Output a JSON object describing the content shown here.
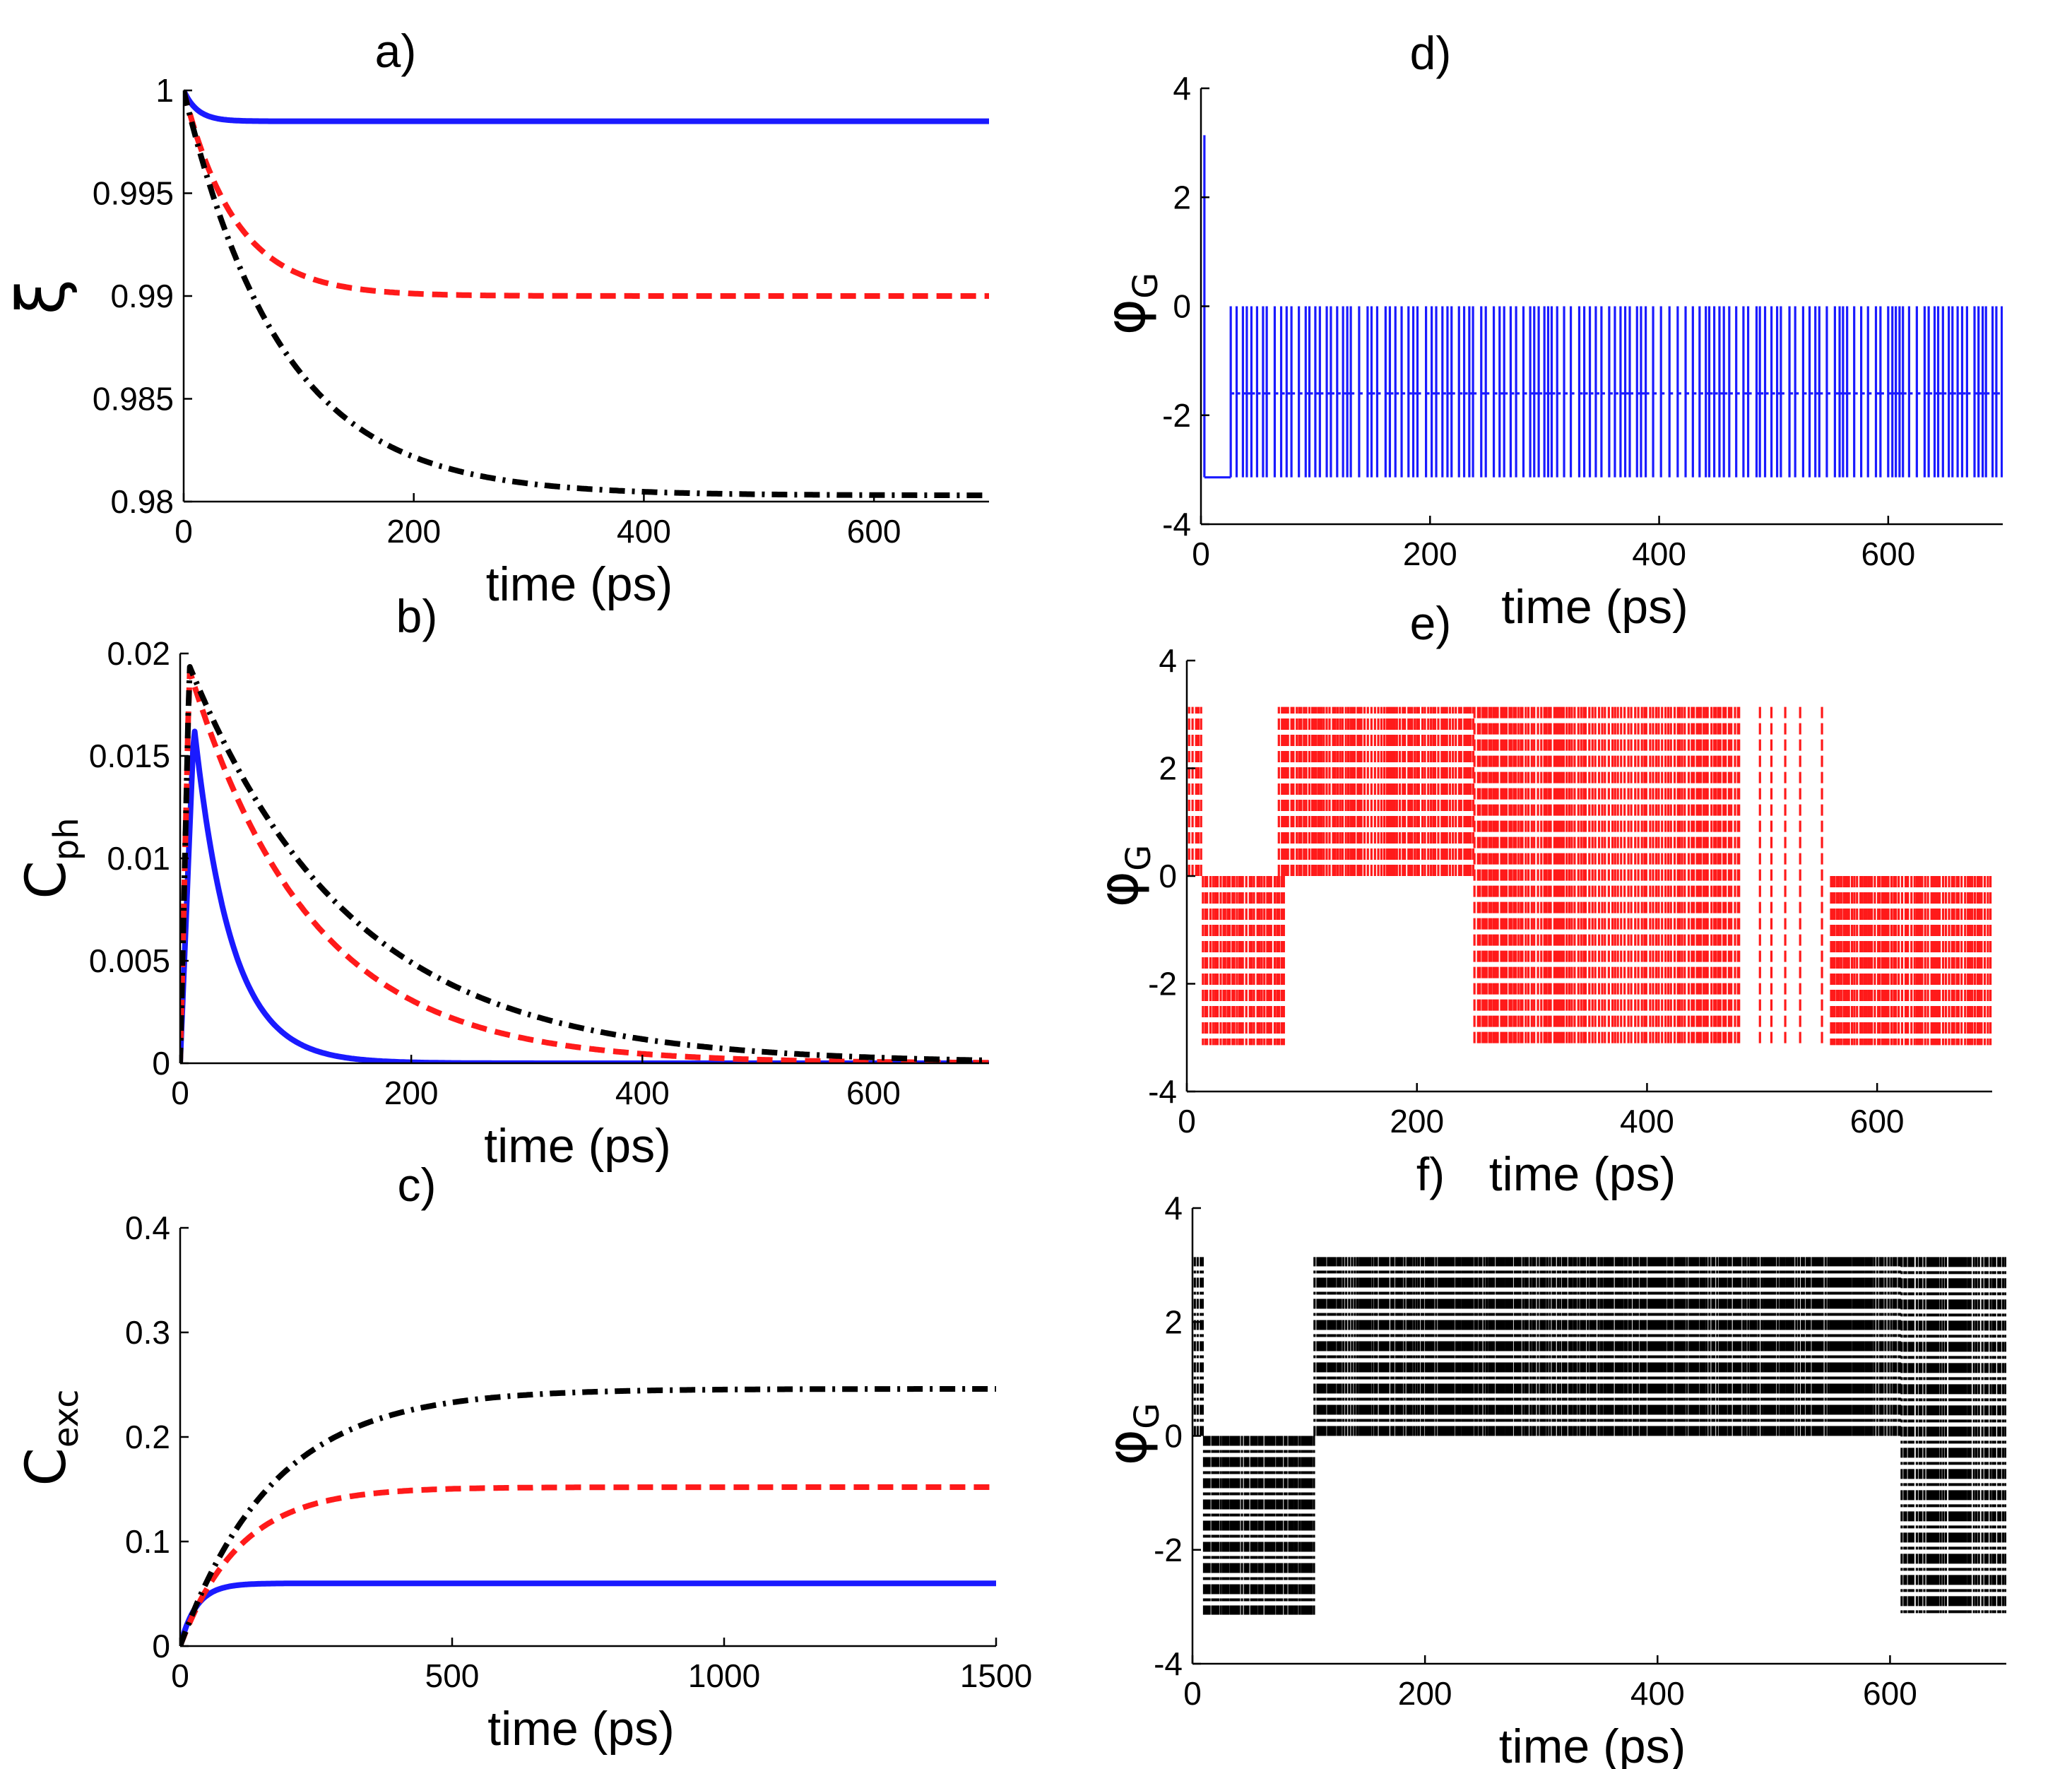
{
  "chart_data": [
    {
      "id": "a",
      "panel_label": "a)",
      "type": "line",
      "ylabel": "ξ",
      "xlabel": "time (ps)",
      "xlim": [
        0,
        700
      ],
      "ylim": [
        0.98,
        1.0
      ],
      "xticks": [
        0,
        200,
        400,
        600
      ],
      "xtick_labels": [
        "0",
        "200",
        "400",
        "600"
      ],
      "yticks": [
        0.98,
        0.985,
        0.99,
        0.995,
        1.0
      ],
      "ytick_labels": [
        "0.98",
        "0.985",
        "0.99",
        "0.995",
        "1"
      ],
      "series": [
        {
          "name": "solid-blue",
          "color": "#1a1aff",
          "style": "solid",
          "model": "exp_decay",
          "start": 1.0,
          "end": 0.9985,
          "tau": 12
        },
        {
          "name": "dashed-red",
          "color": "#ff1a1a",
          "style": "dashed",
          "model": "exp_decay",
          "start": 1.0,
          "end": 0.99,
          "tau": 45
        },
        {
          "name": "dashdot-black",
          "color": "#000000",
          "style": "dashdot",
          "model": "exp_decay",
          "start": 1.0,
          "end": 0.9803,
          "tau": 85
        }
      ]
    },
    {
      "id": "b",
      "panel_label": "b)",
      "type": "line",
      "ylabel": "C",
      "ylabel_sub": "ph",
      "xlabel": "time (ps)",
      "xlim": [
        0,
        700
      ],
      "ylim": [
        0,
        0.02
      ],
      "xticks": [
        0,
        200,
        400,
        600
      ],
      "xtick_labels": [
        "0",
        "200",
        "400",
        "600"
      ],
      "yticks": [
        0,
        0.005,
        0.01,
        0.015,
        0.02
      ],
      "ytick_labels": [
        "0",
        "0.005",
        "0.01",
        "0.015",
        "0.02"
      ],
      "series": [
        {
          "name": "solid-blue",
          "color": "#1a1aff",
          "style": "solid",
          "model": "rise_decay",
          "peak_t": 12,
          "peak": 0.0165,
          "tau": 32
        },
        {
          "name": "dashed-red",
          "color": "#ff1a1a",
          "style": "dashed",
          "model": "rise_decay",
          "peak_t": 8,
          "peak": 0.0192,
          "tau": 105
        },
        {
          "name": "dashdot-black",
          "color": "#000000",
          "style": "dashdot",
          "model": "rise_decay",
          "peak_t": 8,
          "peak": 0.0194,
          "tau": 140
        }
      ]
    },
    {
      "id": "c",
      "panel_label": "c)",
      "type": "line",
      "ylabel": "C",
      "ylabel_sub": "exc",
      "xlabel": "time (ps)",
      "xlim": [
        0,
        1500
      ],
      "ylim": [
        0,
        0.4
      ],
      "xticks": [
        0,
        500,
        1000,
        1500
      ],
      "xtick_labels": [
        "0",
        "500",
        "1000",
        "1500"
      ],
      "yticks": [
        0,
        0.1,
        0.2,
        0.3,
        0.4
      ],
      "ytick_labels": [
        "0",
        "0.1",
        "0.2",
        "0.3",
        "0.4"
      ],
      "series": [
        {
          "name": "solid-blue",
          "color": "#1a1aff",
          "style": "solid",
          "model": "saturate",
          "end": 0.06,
          "tau": 30
        },
        {
          "name": "dashed-red",
          "color": "#ff1a1a",
          "style": "dashed",
          "model": "saturate",
          "end": 0.152,
          "tau": 110
        },
        {
          "name": "dashdot-black",
          "color": "#000000",
          "style": "dashdot",
          "model": "saturate",
          "end": 0.246,
          "tau": 170
        }
      ]
    },
    {
      "id": "d",
      "panel_label": "d)",
      "type": "line",
      "ylabel": "φ",
      "ylabel_sub": "G",
      "xlabel": "time (ps)",
      "xlim": [
        0,
        700
      ],
      "ylim": [
        -4,
        4
      ],
      "xticks": [
        0,
        200,
        400,
        600
      ],
      "xtick_labels": [
        "0",
        "200",
        "400",
        "600"
      ],
      "yticks": [
        -4,
        -2,
        0,
        2,
        4
      ],
      "ytick_labels": [
        "-4",
        "-2",
        "0",
        "2",
        "4"
      ],
      "series": [
        {
          "name": "phase-blue",
          "color": "#1a1aff",
          "style": "solid",
          "model": "phase_jumps",
          "initial_spike": {
            "t": 3,
            "value": 3.14
          },
          "flat": {
            "from": 3,
            "to": 26,
            "value": -3.14
          },
          "segments": [
            {
              "from": 26,
              "to": 700,
              "levels": [
                0,
                -1.6,
                -3.14
              ],
              "step": 5.2
            }
          ]
        }
      ]
    },
    {
      "id": "e",
      "panel_label": "e)",
      "type": "line",
      "ylabel": "φ",
      "ylabel_sub": "G",
      "xlabel": "time (ps)",
      "xlim": [
        0,
        700
      ],
      "ylim": [
        -4,
        4
      ],
      "xticks": [
        0,
        200,
        400,
        600
      ],
      "xtick_labels": [
        "0",
        "200",
        "400",
        "600"
      ],
      "yticks": [
        -4,
        -2,
        0,
        2,
        4
      ],
      "ytick_labels": [
        "-4",
        "-2",
        "0",
        "2",
        "4"
      ],
      "series": [
        {
          "name": "phase-red",
          "color": "#ff1a1a",
          "style": "dashed",
          "model": "phase_jumps",
          "segments": [
            {
              "from": 2,
              "to": 14,
              "levels": [
                0,
                3.14
              ],
              "step": 3
            },
            {
              "from": 14,
              "to": 85,
              "levels": [
                0,
                -3.14
              ],
              "step": 2.2
            },
            {
              "from": 80,
              "to": 250,
              "levels": [
                0,
                3.14
              ],
              "step": 2.2
            },
            {
              "from": 250,
              "to": 480,
              "levels": [
                3.14,
                -3.14
              ],
              "step": 2.4
            },
            {
              "from": 480,
              "to": 560,
              "levels": [
                3.14,
                -3.14
              ],
              "step": 14
            },
            {
              "from": 560,
              "to": 700,
              "levels": [
                0,
                -3.14
              ],
              "step": 2.2
            }
          ]
        }
      ]
    },
    {
      "id": "f",
      "panel_label": "f)",
      "type": "line",
      "ylabel": "φ",
      "ylabel_sub": "G",
      "xlabel": "time (ps)",
      "xlim": [
        0,
        700
      ],
      "ylim": [
        -4,
        4
      ],
      "xticks": [
        0,
        200,
        400,
        600
      ],
      "xtick_labels": [
        "0",
        "200",
        "400",
        "600"
      ],
      "yticks": [
        -4,
        -2,
        0,
        2,
        4
      ],
      "ytick_labels": [
        "-4",
        "-2",
        "0",
        "2",
        "4"
      ],
      "series": [
        {
          "name": "phase-black",
          "color": "#000000",
          "style": "dashdot",
          "model": "phase_jumps",
          "segments": [
            {
              "from": 2,
              "to": 10,
              "levels": [
                0,
                3.14
              ],
              "step": 2.5
            },
            {
              "from": 10,
              "to": 105,
              "levels": [
                0,
                -3.14
              ],
              "step": 1.8
            },
            {
              "from": 105,
              "to": 610,
              "levels": [
                0,
                3.14
              ],
              "step": 1.8
            },
            {
              "from": 610,
              "to": 700,
              "levels": [
                3.14,
                -3.14
              ],
              "step": 2.2
            }
          ]
        }
      ]
    }
  ]
}
